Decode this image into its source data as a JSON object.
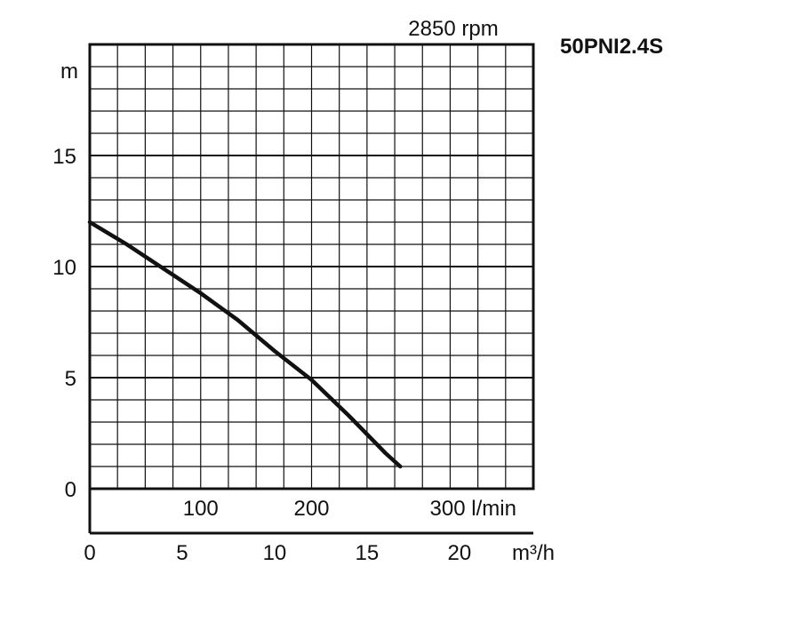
{
  "title": "2850 rpm",
  "model": "50PNI2.4S",
  "chart_data": {
    "type": "line",
    "ylabel": "m",
    "ylim": [
      0,
      20
    ],
    "yticks": [
      "0",
      "5",
      "10",
      "15"
    ],
    "x_lpm_ticks": [
      "100",
      "200",
      "300"
    ],
    "x_lpm_unit": "l/min",
    "x_m3h_ticks": [
      "0",
      "5",
      "10",
      "15",
      "20"
    ],
    "x_m3h_unit": "m³/h",
    "xlim_m3h": [
      0,
      24
    ],
    "grid": true,
    "series": [
      {
        "x": [
          0,
          2,
          4,
          6,
          8,
          10,
          12,
          14,
          16,
          16.8
        ],
        "y": [
          12.0,
          11.0,
          9.9,
          8.8,
          7.6,
          6.2,
          4.9,
          3.3,
          1.6,
          1.0
        ]
      }
    ]
  }
}
